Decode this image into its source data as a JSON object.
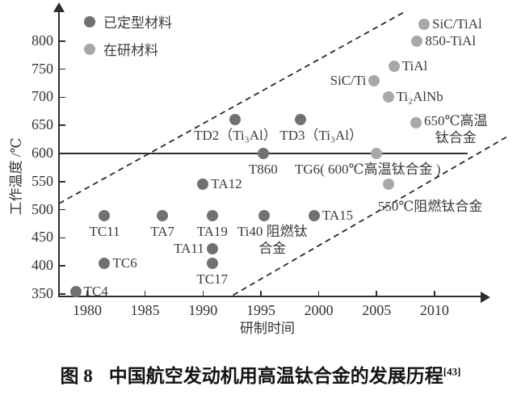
{
  "figure": {
    "caption_prefix": "图 8",
    "caption_text": "中国航空发动机用高温钛合金的发展历程",
    "caption_ref": "[43]"
  },
  "chart_data": {
    "type": "scatter",
    "title": "",
    "xlabel": "研制时间",
    "ylabel": "工作温度 /℃",
    "xlim": [
      1977.5,
      2013
    ],
    "ylim": [
      345,
      865
    ],
    "grid": false,
    "legend_position": "top-left-inside",
    "x_ticks": [
      1980,
      1985,
      1990,
      1995,
      2000,
      2005,
      2010
    ],
    "y_ticks": [
      350,
      400,
      450,
      500,
      550,
      600,
      650,
      700,
      750,
      800
    ],
    "legend": [
      {
        "key": "finalized",
        "label": "已定型材料",
        "color": "#717171"
      },
      {
        "key": "in_research",
        "label": "在研材料",
        "color": "#a8a8a8"
      }
    ],
    "reference_line": {
      "temp": 600,
      "x1": 1977.56,
      "x2": 2012.9
    },
    "dashed_lines": [
      {
        "x1": 1977.56,
        "y1": 511,
        "x2": 2007.6,
        "y2": 854
      },
      {
        "x1": 1992.6,
        "y1": 348,
        "x2": 2016.2,
        "y2": 629
      }
    ],
    "points": [
      {
        "label": "TC4",
        "year": 1979,
        "temp": 355,
        "series": "finalized",
        "anchor": "right"
      },
      {
        "label": "TC6",
        "year": 1981.5,
        "temp": 405,
        "series": "finalized",
        "anchor": "right"
      },
      {
        "label": "TC11",
        "year": 1981.5,
        "temp": 490,
        "series": "finalized",
        "anchor": "below"
      },
      {
        "label": "TA7",
        "year": 1986.5,
        "temp": 490,
        "series": "finalized",
        "anchor": "below"
      },
      {
        "label": "TA19",
        "year": 1990.8,
        "temp": 490,
        "series": "finalized",
        "anchor": "below"
      },
      {
        "label": "TA11",
        "year": 1990.8,
        "temp": 430,
        "series": "finalized",
        "anchor": "left"
      },
      {
        "label": "TC17",
        "year": 1990.8,
        "temp": 405,
        "series": "finalized",
        "anchor": "below"
      },
      {
        "label": "TA12",
        "year": 1990,
        "temp": 545,
        "series": "finalized",
        "anchor": "right"
      },
      {
        "label": "Ti40 阻燃钛\n合金",
        "year": 1995.3,
        "temp": 490,
        "series": "finalized",
        "anchor": "below",
        "dx": 10
      },
      {
        "label": "TA15",
        "year": 1999.6,
        "temp": 490,
        "series": "finalized",
        "anchor": "right"
      },
      {
        "label": "T860",
        "year": 1995.2,
        "temp": 600,
        "series": "finalized",
        "anchor": "below"
      },
      {
        "label": "TD2（Ti₃Al）",
        "year": 1992.8,
        "temp": 660,
        "series": "finalized",
        "anchor": "below"
      },
      {
        "label": "TD3（Ti₃Al）",
        "year": 1998.4,
        "temp": 660,
        "series": "finalized",
        "anchor": "below",
        "dx": 26
      },
      {
        "label": "TG6( 600℃高温钛合金 )",
        "year": 2005,
        "temp": 600,
        "series": "in_research",
        "anchor": "below",
        "dx": -11
      },
      {
        "label": "550℃阻燃钛合金",
        "year": 2006,
        "temp": 545,
        "series": "in_research",
        "anchor": "below",
        "dx": 52,
        "dy": 8
      },
      {
        "label": "SiC/Ti",
        "year": 2004.8,
        "temp": 730,
        "series": "in_research",
        "anchor": "left"
      },
      {
        "label": "Ti₂AlNb",
        "year": 2006,
        "temp": 700,
        "series": "in_research",
        "anchor": "right"
      },
      {
        "label": "TiAl",
        "year": 2006.5,
        "temp": 755,
        "series": "in_research",
        "anchor": "right"
      },
      {
        "label": "850-TiAl",
        "year": 2008.5,
        "temp": 800,
        "series": "in_research",
        "anchor": "right"
      },
      {
        "label": "SiC/TiAl",
        "year": 2009.1,
        "temp": 830,
        "series": "in_research",
        "anchor": "right"
      },
      {
        "label": "650℃高温\n钛合金",
        "year": 2008.4,
        "temp": 655,
        "series": "in_research",
        "anchor": "right",
        "dy": -2
      }
    ]
  }
}
